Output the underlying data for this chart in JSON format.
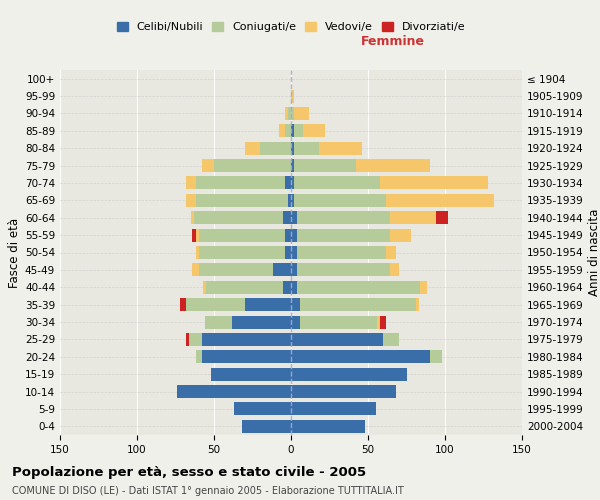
{
  "age_groups": [
    "0-4",
    "5-9",
    "10-14",
    "15-19",
    "20-24",
    "25-29",
    "30-34",
    "35-39",
    "40-44",
    "45-49",
    "50-54",
    "55-59",
    "60-64",
    "65-69",
    "70-74",
    "75-79",
    "80-84",
    "85-89",
    "90-94",
    "95-99",
    "100+"
  ],
  "birth_years": [
    "2000-2004",
    "1995-1999",
    "1990-1994",
    "1985-1989",
    "1980-1984",
    "1975-1979",
    "1970-1974",
    "1965-1969",
    "1960-1964",
    "1955-1959",
    "1950-1954",
    "1945-1949",
    "1940-1944",
    "1935-1939",
    "1930-1934",
    "1925-1929",
    "1920-1924",
    "1915-1919",
    "1910-1914",
    "1905-1909",
    "≤ 1904"
  ],
  "males": {
    "celibi": [
      32,
      37,
      74,
      52,
      58,
      58,
      38,
      30,
      5,
      12,
      4,
      4,
      5,
      2,
      4,
      0,
      0,
      0,
      0,
      0,
      0
    ],
    "coniugati": [
      0,
      0,
      0,
      0,
      4,
      8,
      18,
      38,
      50,
      48,
      56,
      56,
      58,
      60,
      58,
      50,
      20,
      4,
      2,
      0,
      0
    ],
    "vedovi": [
      0,
      0,
      0,
      0,
      0,
      0,
      0,
      0,
      2,
      4,
      2,
      2,
      2,
      6,
      6,
      8,
      10,
      4,
      2,
      0,
      0
    ],
    "divorziati": [
      0,
      0,
      0,
      0,
      0,
      2,
      0,
      4,
      0,
      0,
      0,
      2,
      0,
      0,
      0,
      0,
      0,
      0,
      0,
      0,
      0
    ]
  },
  "females": {
    "nubili": [
      48,
      55,
      68,
      75,
      90,
      60,
      6,
      6,
      4,
      4,
      4,
      4,
      4,
      2,
      2,
      2,
      2,
      2,
      0,
      0,
      0
    ],
    "coniugate": [
      0,
      0,
      0,
      0,
      8,
      10,
      50,
      75,
      80,
      60,
      58,
      60,
      60,
      60,
      56,
      40,
      16,
      6,
      2,
      0,
      0
    ],
    "vedove": [
      0,
      0,
      0,
      0,
      0,
      0,
      2,
      2,
      4,
      6,
      6,
      14,
      30,
      70,
      70,
      48,
      28,
      14,
      10,
      2,
      0
    ],
    "divorziate": [
      0,
      0,
      0,
      0,
      0,
      0,
      4,
      0,
      0,
      0,
      0,
      0,
      8,
      0,
      0,
      0,
      0,
      0,
      0,
      0,
      0
    ]
  },
  "colors": {
    "celibi": "#3a6ea8",
    "coniugati": "#b5cb9a",
    "vedovi": "#f5c76a",
    "divorziati": "#cc2222"
  },
  "xlim": 150,
  "title": "Popolazione per età, sesso e stato civile - 2005",
  "subtitle": "COMUNE DI DISO (LE) - Dati ISTAT 1° gennaio 2005 - Elaborazione TUTTITALIA.IT",
  "ylabel_left": "Fasce di età",
  "ylabel_right": "Anni di nascita",
  "xlabel_right": "Femmine",
  "legend_labels": [
    "Celibi/Nubili",
    "Coniugati/e",
    "Vedovi/e",
    "Divorziati/e"
  ],
  "bg_color": "#f0f0eb",
  "plot_bg": "#e8e8e0"
}
